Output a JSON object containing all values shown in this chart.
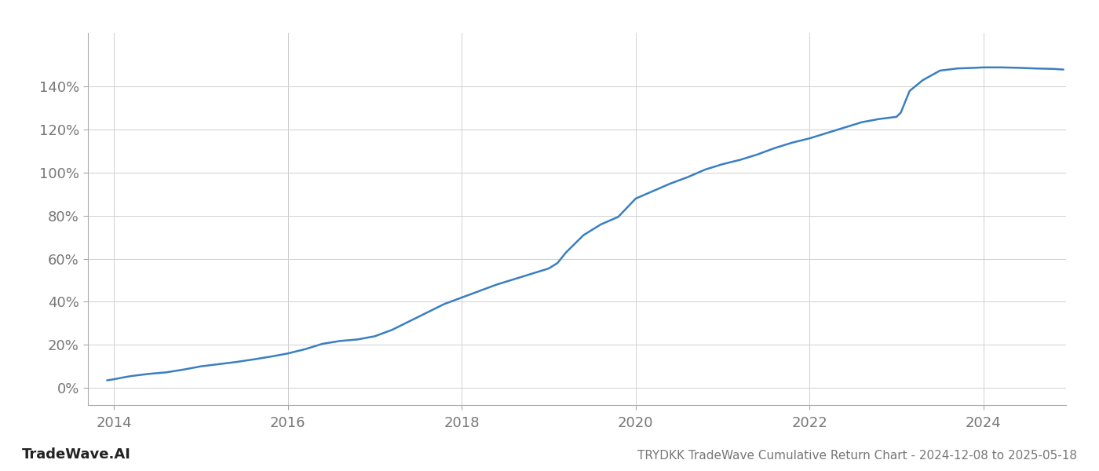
{
  "title": "TRYDKK TradeWave Cumulative Return Chart - 2024-12-08 to 2025-05-18",
  "watermark": "TradeWave.AI",
  "line_color": "#3a7fc1",
  "line_width": 1.8,
  "background_color": "#ffffff",
  "grid_color": "#d0d0d0",
  "x_ticks": [
    2014,
    2016,
    2018,
    2020,
    2022,
    2024
  ],
  "y_ticks": [
    0,
    20,
    40,
    60,
    80,
    100,
    120,
    140
  ],
  "xlim": [
    2013.7,
    2024.95
  ],
  "ylim": [
    -8,
    165
  ],
  "data_x": [
    2013.92,
    2014.0,
    2014.1,
    2014.2,
    2014.4,
    2014.6,
    2014.8,
    2015.0,
    2015.2,
    2015.4,
    2015.6,
    2015.8,
    2016.0,
    2016.2,
    2016.4,
    2016.6,
    2016.8,
    2017.0,
    2017.2,
    2017.4,
    2017.6,
    2017.8,
    2018.0,
    2018.2,
    2018.4,
    2018.6,
    2018.8,
    2019.0,
    2019.1,
    2019.2,
    2019.4,
    2019.6,
    2019.8,
    2020.0,
    2020.2,
    2020.4,
    2020.6,
    2020.8,
    2021.0,
    2021.2,
    2021.4,
    2021.6,
    2021.8,
    2022.0,
    2022.2,
    2022.4,
    2022.6,
    2022.8,
    2023.0,
    2023.05,
    2023.15,
    2023.3,
    2023.5,
    2023.7,
    2023.9,
    2024.0,
    2024.2,
    2024.4,
    2024.6,
    2024.8,
    2024.92
  ],
  "data_y": [
    3.5,
    4.0,
    4.8,
    5.5,
    6.5,
    7.2,
    8.5,
    10.0,
    11.0,
    12.0,
    13.2,
    14.5,
    16.0,
    18.0,
    20.5,
    21.8,
    22.5,
    24.0,
    27.0,
    31.0,
    35.0,
    39.0,
    42.0,
    45.0,
    48.0,
    50.5,
    53.0,
    55.5,
    58.0,
    63.0,
    71.0,
    76.0,
    79.5,
    88.0,
    91.5,
    95.0,
    98.0,
    101.5,
    104.0,
    106.0,
    108.5,
    111.5,
    114.0,
    116.0,
    118.5,
    121.0,
    123.5,
    125.0,
    126.0,
    128.0,
    138.0,
    143.0,
    147.5,
    148.5,
    148.8,
    149.0,
    149.0,
    148.8,
    148.5,
    148.3,
    148.0
  ],
  "tick_label_color": "#777777",
  "tick_fontsize": 13,
  "footer_fontsize": 11,
  "watermark_fontsize": 13,
  "spine_color": "#aaaaaa"
}
